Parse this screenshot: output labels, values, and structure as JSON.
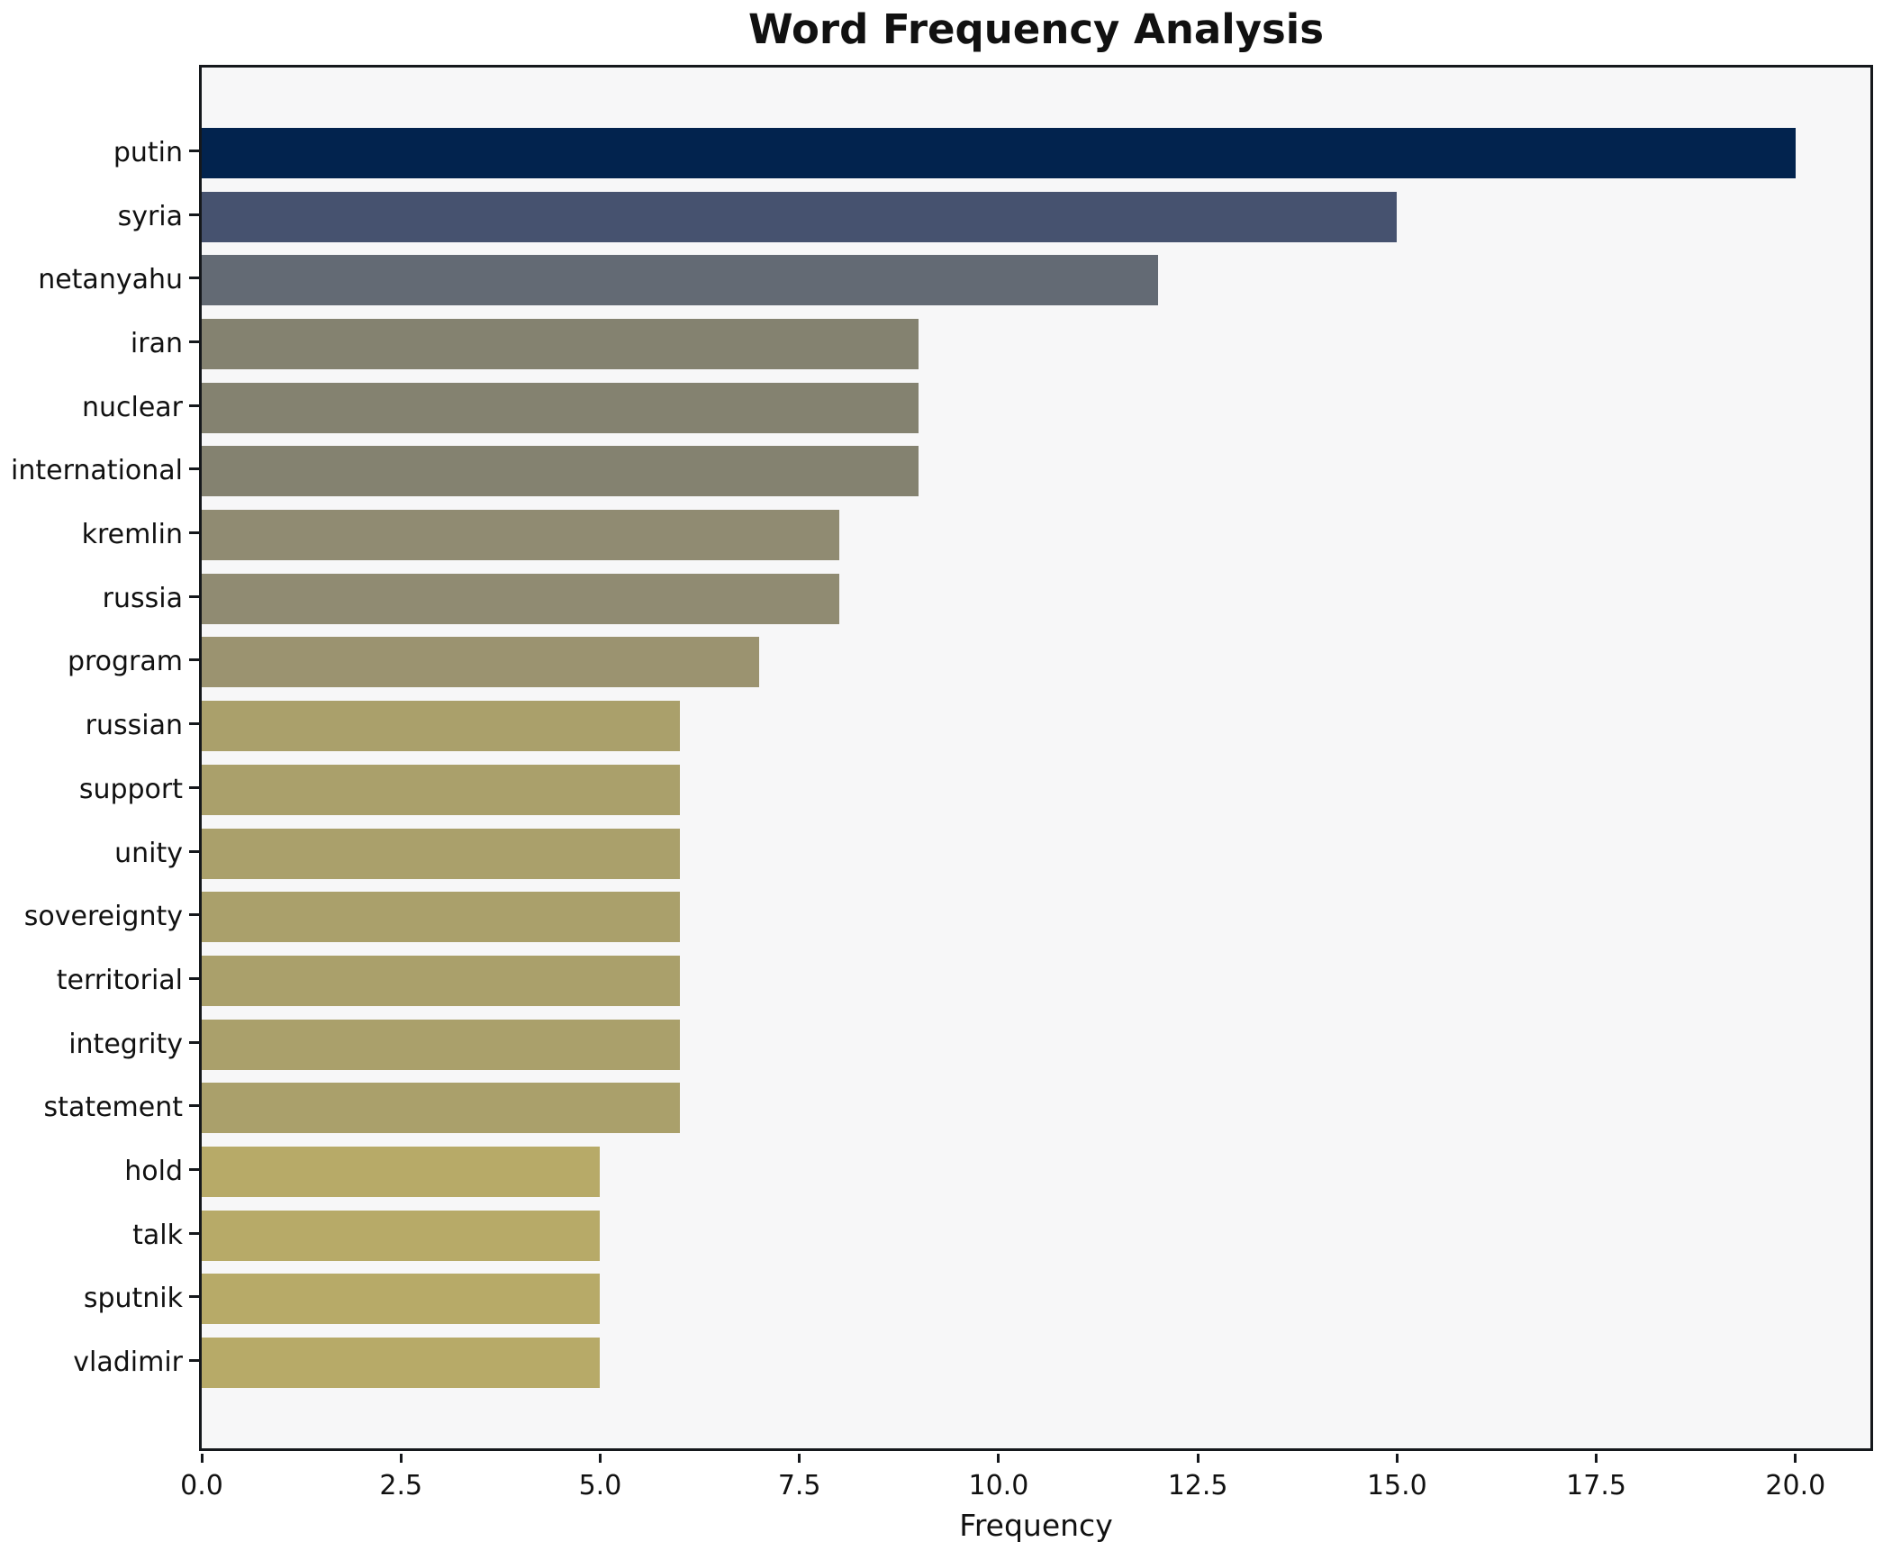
{
  "chart_data": {
    "type": "bar",
    "orientation": "horizontal",
    "title": "Word Frequency Analysis",
    "xlabel": "Frequency",
    "ylabel": "",
    "categories": [
      "putin",
      "syria",
      "netanyahu",
      "iran",
      "nuclear",
      "international",
      "kremlin",
      "russia",
      "program",
      "russian",
      "support",
      "unity",
      "sovereignty",
      "territorial",
      "integrity",
      "statement",
      "hold",
      "talk",
      "sputnik",
      "vladimir"
    ],
    "values": [
      20,
      15,
      12,
      9,
      9,
      9,
      8,
      8,
      7,
      6,
      6,
      6,
      6,
      6,
      6,
      6,
      5,
      5,
      5,
      5
    ],
    "bar_colors": [
      "#02234e",
      "#46526f",
      "#636a74",
      "#848270",
      "#848270",
      "#848270",
      "#908b72",
      "#908b72",
      "#9b9370",
      "#aaa06b",
      "#aaa06b",
      "#aaa06b",
      "#aaa06b",
      "#aaa06b",
      "#aaa06b",
      "#aaa06b",
      "#b7aa68",
      "#b7aa68",
      "#b7aa68",
      "#b7aa68"
    ],
    "x_ticks": [
      0,
      2.5,
      5,
      7.5,
      10,
      12.5,
      15,
      17.5,
      20
    ],
    "x_tick_labels": [
      "0.0",
      "2.5",
      "5.0",
      "7.5",
      "10.0",
      "12.5",
      "15.0",
      "17.5",
      "20.0"
    ],
    "xlim": [
      0,
      20.94
    ],
    "grid": false,
    "legend": null,
    "colors": {
      "plot_background": "#f7f7f8",
      "figure_background": "#ffffff",
      "axis": "#15181c",
      "text": "#111111"
    }
  }
}
